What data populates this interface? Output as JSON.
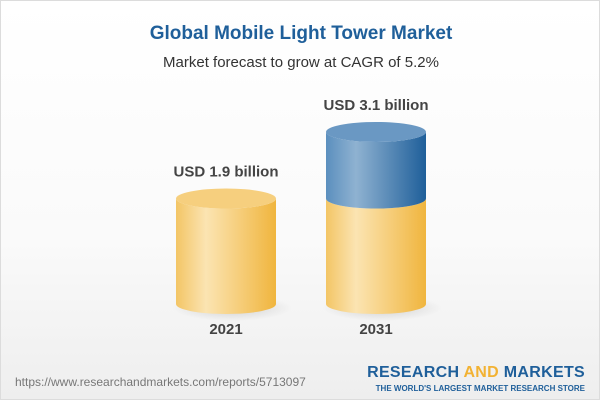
{
  "title": "Global Mobile Light Tower Market",
  "subtitle": "Market forecast to grow at CAGR of 5.2%",
  "chart_data": {
    "type": "bar",
    "style": "3d-cylinder",
    "categories": [
      "2021",
      "2031"
    ],
    "values": [
      1.9,
      3.1
    ],
    "unit": "USD billion",
    "data_labels": [
      "USD 1.9 billion",
      "USD 3.1 billion"
    ],
    "title": "Global Mobile Light Tower Market",
    "subtitle": "Market forecast to grow at CAGR of 5.2%",
    "colors": {
      "base": "#f2c05a",
      "growth": "#4a82b4"
    }
  },
  "footer": {
    "url": "https://www.researchandmarkets.com/reports/5713097",
    "logo_part1": "RESEARCH ",
    "logo_part2": "AND",
    "logo_part3": " MARKETS",
    "logo_tagline": "THE WORLD'S LARGEST MARKET RESEARCH STORE"
  }
}
